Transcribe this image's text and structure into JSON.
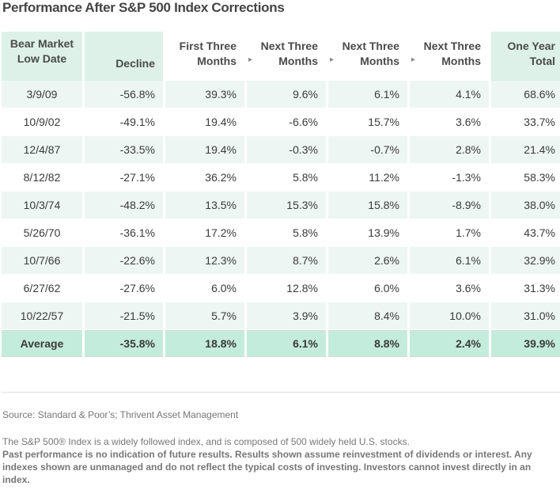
{
  "title": "Performance After S&P 500 Index Corrections",
  "headers": {
    "low_date": [
      "Bear Market",
      "Low Date"
    ],
    "decline": "Decline",
    "first_three": [
      "First Three",
      "Months"
    ],
    "next_three_a": [
      "Next Three",
      "Months"
    ],
    "next_three_b": [
      "Next Three",
      "Months"
    ],
    "next_three_c": [
      "Next Three",
      "Months"
    ],
    "one_year": [
      "One Year",
      "Total"
    ],
    "arrow": "▸"
  },
  "rows": [
    {
      "date": "3/9/09",
      "decline": "-56.8%",
      "m3": "39.3%",
      "m6": "9.6%",
      "m9": "6.1%",
      "m12": "4.1%",
      "total": "68.6%"
    },
    {
      "date": "10/9/02",
      "decline": "-49.1%",
      "m3": "19.4%",
      "m6": "-6.6%",
      "m9": "15.7%",
      "m12": "3.6%",
      "total": "33.7%"
    },
    {
      "date": "12/4/87",
      "decline": "-33.5%",
      "m3": "19.4%",
      "m6": "-0.3%",
      "m9": "-0.7%",
      "m12": "2.8%",
      "total": "21.4%"
    },
    {
      "date": "8/12/82",
      "decline": "-27.1%",
      "m3": "36.2%",
      "m6": "5.8%",
      "m9": "11.2%",
      "m12": "-1.3%",
      "total": "58.3%"
    },
    {
      "date": "10/3/74",
      "decline": "-48.2%",
      "m3": "13.5%",
      "m6": "15.3%",
      "m9": "15.8%",
      "m12": "-8.9%",
      "total": "38.0%"
    },
    {
      "date": "5/26/70",
      "decline": "-36.1%",
      "m3": "17.2%",
      "m6": "5.8%",
      "m9": "13.9%",
      "m12": "1.7%",
      "total": "43.7%"
    },
    {
      "date": "10/7/66",
      "decline": "-22.6%",
      "m3": "12.3%",
      "m6": "8.7%",
      "m9": "2.6%",
      "m12": "6.1%",
      "total": "32.9%"
    },
    {
      "date": "6/27/62",
      "decline": "-27.6%",
      "m3": "6.0%",
      "m6": "12.8%",
      "m9": "6.0%",
      "m12": "3.6%",
      "total": "31.3%"
    },
    {
      "date": "10/22/57",
      "decline": "-21.5%",
      "m3": "5.7%",
      "m6": "3.9%",
      "m9": "8.4%",
      "m12": "10.0%",
      "total": "31.0%"
    }
  ],
  "average": {
    "label": "Average",
    "decline": "-35.8%",
    "m3": "18.8%",
    "m6": "6.1%",
    "m9": "8.8%",
    "m12": "2.4%",
    "total": "39.9%"
  },
  "source": "Source: Standard & Poor’s; Thrivent Asset Management",
  "disclaimer": {
    "line1": "The S&P 500® Index is a widely followed index, and is composed of 500 widely held U.S. stocks.",
    "bold": "Past performance is no indication of future results. Results shown assume reinvestment of dividends or interest. Any indexes shown are unmanaged and do not reflect the typical costs of investing. Investors cannot invest directly in an index."
  },
  "colors": {
    "header_shade": "#ddf1e8",
    "band": "#eef6f3",
    "average_row": "#c4ecdd"
  }
}
